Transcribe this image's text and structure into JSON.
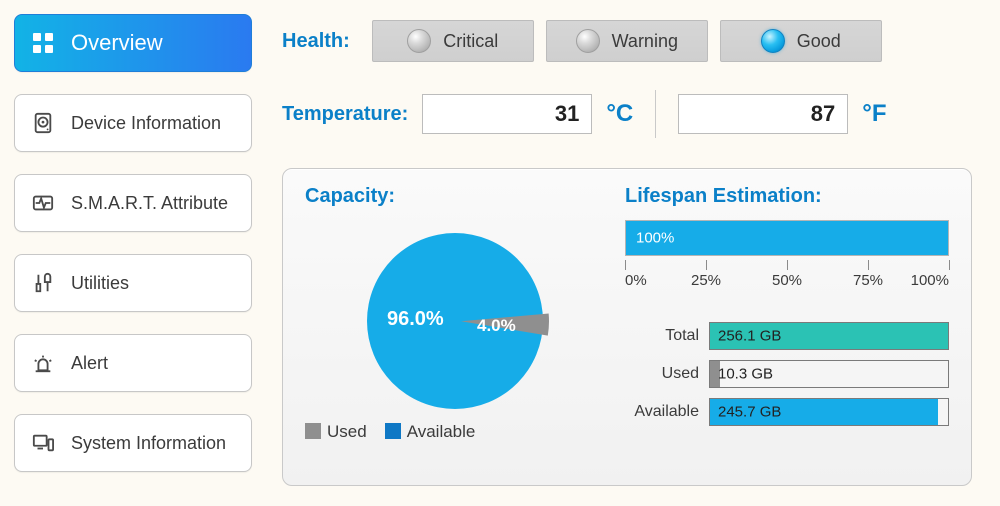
{
  "sidebar": {
    "items": [
      {
        "label": "Overview",
        "icon": "grid"
      },
      {
        "label": "Device Information",
        "icon": "hdd"
      },
      {
        "label": "S.M.A.R.T. Attribute",
        "icon": "pulse"
      },
      {
        "label": "Utilities",
        "icon": "tools"
      },
      {
        "label": "Alert",
        "icon": "siren"
      },
      {
        "label": "System Information",
        "icon": "system"
      }
    ],
    "active_index": 0
  },
  "health": {
    "label": "Health:",
    "statuses": [
      {
        "name": "Critical",
        "active": false
      },
      {
        "name": "Warning",
        "active": false
      },
      {
        "name": "Good",
        "active": true
      }
    ]
  },
  "temperature": {
    "label": "Temperature:",
    "celsius": "31",
    "celsius_unit": "°C",
    "fahrenheit": "87",
    "fahrenheit_unit": "°F"
  },
  "capacity": {
    "title": "Capacity:",
    "pie": {
      "available_pct": 96.0,
      "used_pct": 4.0,
      "available_label": "96.0%",
      "used_label": "4.0%",
      "available_color": "#16ace8",
      "used_color": "#8f8f8f"
    },
    "legend": {
      "used": "Used",
      "available": "Available",
      "used_color": "#8f8f8f",
      "available_color": "#0f78c5"
    }
  },
  "lifespan": {
    "title": "Lifespan Estimation:",
    "percent": 100,
    "percent_label": "100%",
    "bar_color": "#16ace8",
    "scale": {
      "ticks": [
        0,
        25,
        50,
        75,
        100
      ],
      "labels": [
        "0%",
        "25%",
        "50%",
        "75%",
        "100%"
      ]
    }
  },
  "sizes": {
    "total": {
      "label": "Total",
      "value": "256.1 GB",
      "fill_pct": 100,
      "color": "#2bc2b4"
    },
    "used": {
      "label": "Used",
      "value": "10.3 GB",
      "fill_pct": 4.0,
      "color": "#8f8f8f"
    },
    "available": {
      "label": "Available",
      "value": "245.7 GB",
      "fill_pct": 96.0,
      "color": "#16ace8"
    }
  },
  "colors": {
    "accent": "#0b80c8",
    "panel_border": "#c9c9c9"
  }
}
